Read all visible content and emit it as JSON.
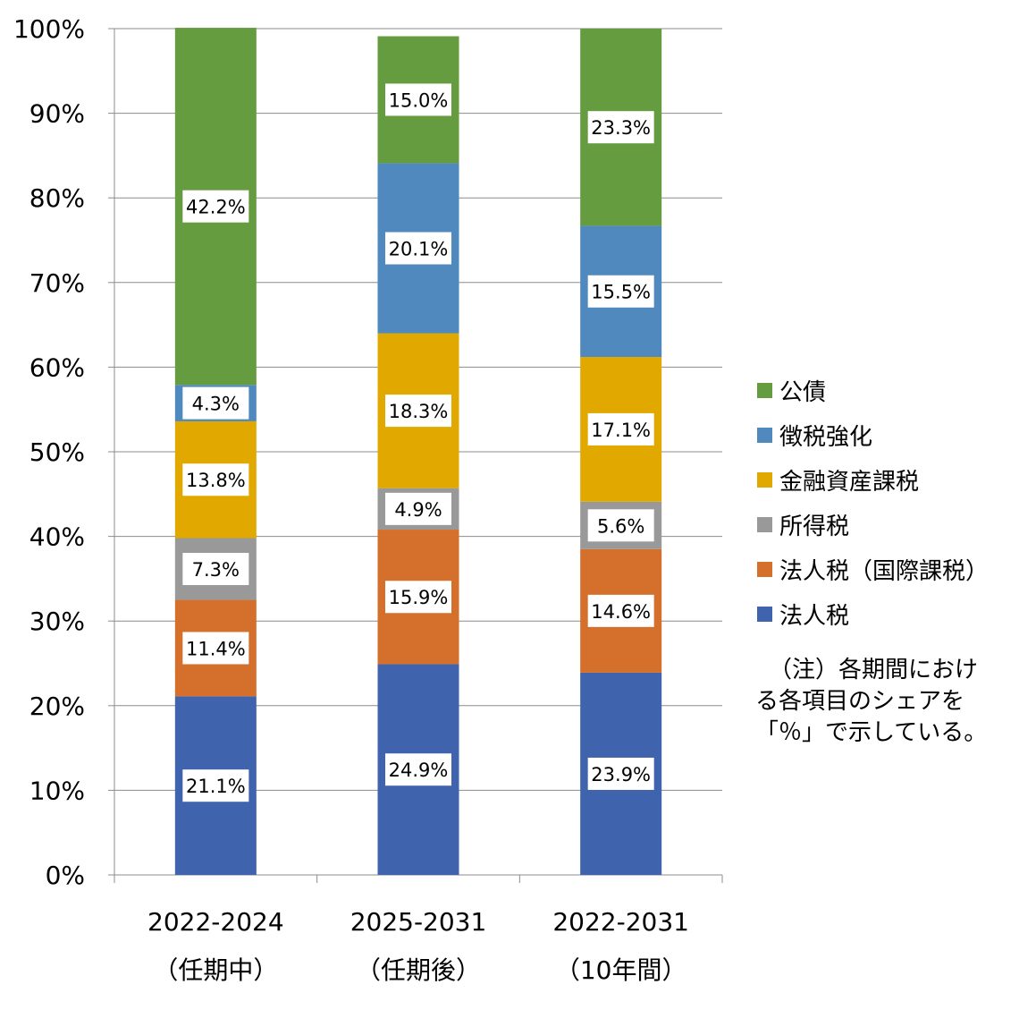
{
  "chart_data": {
    "type": "bar",
    "stacked": true,
    "categories": [
      {
        "line1": "2022-2024",
        "line2": "（任期中）"
      },
      {
        "line1": "2025-2031",
        "line2": "（任期後）"
      },
      {
        "line1": "2022-2031",
        "line2": "（10年間）"
      }
    ],
    "series": [
      {
        "name": "法人税",
        "color": "#3f64ad",
        "values": [
          21.1,
          24.9,
          23.9
        ]
      },
      {
        "name": "法人税（国際課税）",
        "color": "#d46f2c",
        "values": [
          11.4,
          15.9,
          14.6
        ]
      },
      {
        "name": "所得税",
        "color": "#999999",
        "values": [
          7.3,
          4.9,
          5.6
        ]
      },
      {
        "name": "金融資産課税",
        "color": "#e1a900",
        "values": [
          13.8,
          18.3,
          17.1
        ]
      },
      {
        "name": "徴税強化",
        "color": "#4f89bd",
        "values": [
          4.3,
          20.1,
          15.5
        ]
      },
      {
        "name": "公債",
        "color": "#659c3f",
        "values": [
          42.2,
          15.0,
          23.3
        ]
      }
    ],
    "ylim": [
      0,
      100
    ],
    "ytick_step": 10,
    "ytick_suffix": "%",
    "label_suffix": "%",
    "grid": true,
    "legend_position": "right",
    "note_lines": [
      "（注）各期間におけ",
      "る各項目のシェアを",
      "「％」で示している。"
    ]
  }
}
